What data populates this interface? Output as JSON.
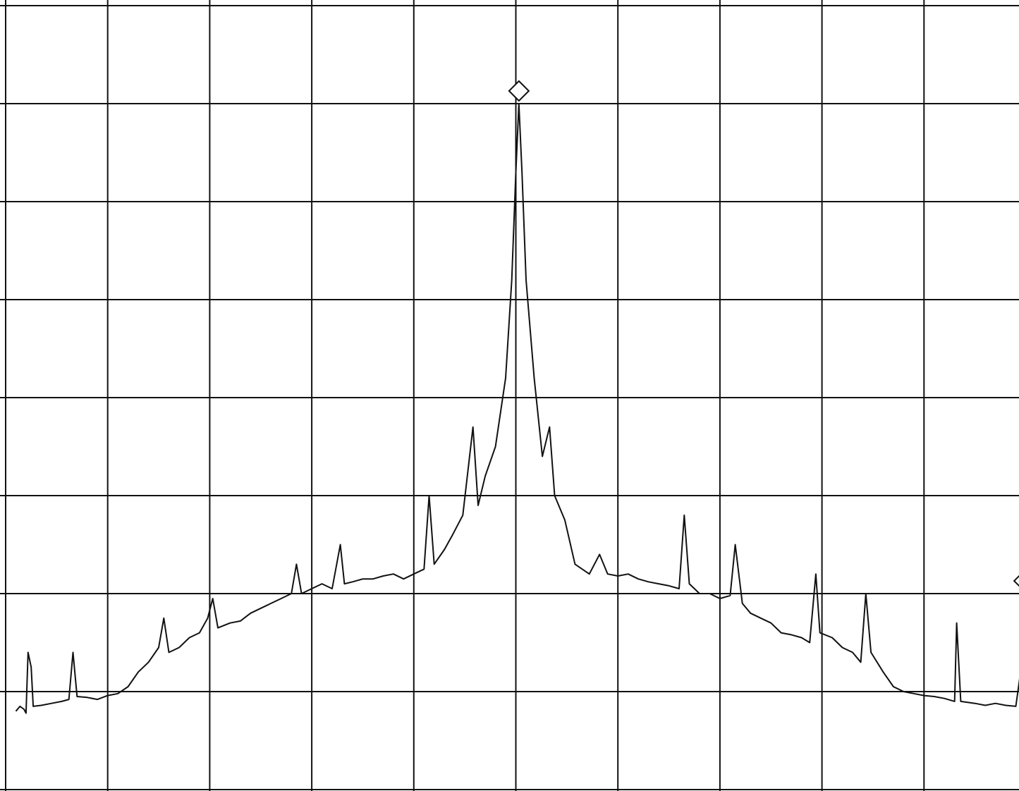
{
  "chart_data": {
    "type": "line",
    "title": "",
    "xlabel": "",
    "ylabel": "",
    "xlim": [
      0,
      10
    ],
    "ylim": [
      0,
      8
    ],
    "grid": true,
    "grid_divisions": {
      "x": 10,
      "y": 8
    },
    "markers": [
      {
        "name": "peak-marker",
        "x": 5.03,
        "y": 7.0
      },
      {
        "name": "edge-marker",
        "x": 9.98,
        "y": 2.0
      }
    ],
    "series": [
      {
        "values_xy": [
          [
            0.1,
            0.8
          ],
          [
            0.14,
            0.85
          ],
          [
            0.18,
            0.82
          ],
          [
            0.2,
            0.78
          ],
          [
            0.22,
            1.4
          ],
          [
            0.25,
            1.25
          ],
          [
            0.27,
            0.85
          ],
          [
            0.35,
            0.86
          ],
          [
            0.45,
            0.88
          ],
          [
            0.55,
            0.9
          ],
          [
            0.62,
            0.92
          ],
          [
            0.66,
            1.4
          ],
          [
            0.7,
            0.95
          ],
          [
            0.8,
            0.94
          ],
          [
            0.9,
            0.92
          ],
          [
            1.0,
            0.96
          ],
          [
            1.1,
            0.98
          ],
          [
            1.2,
            1.05
          ],
          [
            1.3,
            1.2
          ],
          [
            1.4,
            1.3
          ],
          [
            1.5,
            1.45
          ],
          [
            1.55,
            1.75
          ],
          [
            1.6,
            1.4
          ],
          [
            1.7,
            1.45
          ],
          [
            1.8,
            1.55
          ],
          [
            1.9,
            1.6
          ],
          [
            1.98,
            1.75
          ],
          [
            2.03,
            1.95
          ],
          [
            2.08,
            1.65
          ],
          [
            2.2,
            1.7
          ],
          [
            2.3,
            1.72
          ],
          [
            2.4,
            1.8
          ],
          [
            2.5,
            1.85
          ],
          [
            2.6,
            1.9
          ],
          [
            2.7,
            1.95
          ],
          [
            2.8,
            2.0
          ],
          [
            2.85,
            2.3
          ],
          [
            2.9,
            2.0
          ],
          [
            3.0,
            2.05
          ],
          [
            3.1,
            2.1
          ],
          [
            3.2,
            2.05
          ],
          [
            3.28,
            2.5
          ],
          [
            3.32,
            2.1
          ],
          [
            3.4,
            2.12
          ],
          [
            3.5,
            2.15
          ],
          [
            3.6,
            2.15
          ],
          [
            3.7,
            2.18
          ],
          [
            3.8,
            2.2
          ],
          [
            3.9,
            2.15
          ],
          [
            4.0,
            2.2
          ],
          [
            4.1,
            2.25
          ],
          [
            4.15,
            3.0
          ],
          [
            4.2,
            2.3
          ],
          [
            4.3,
            2.45
          ],
          [
            4.38,
            2.6
          ],
          [
            4.48,
            2.8
          ],
          [
            4.58,
            3.7
          ],
          [
            4.63,
            2.9
          ],
          [
            4.7,
            3.2
          ],
          [
            4.8,
            3.5
          ],
          [
            4.9,
            4.2
          ],
          [
            4.96,
            5.2
          ],
          [
            5.0,
            6.3
          ],
          [
            5.03,
            7.0
          ],
          [
            5.06,
            6.3
          ],
          [
            5.1,
            5.2
          ],
          [
            5.18,
            4.2
          ],
          [
            5.26,
            3.4
          ],
          [
            5.33,
            3.7
          ],
          [
            5.38,
            3.0
          ],
          [
            5.48,
            2.75
          ],
          [
            5.58,
            2.3
          ],
          [
            5.72,
            2.2
          ],
          [
            5.82,
            2.4
          ],
          [
            5.9,
            2.2
          ],
          [
            6.0,
            2.18
          ],
          [
            6.1,
            2.2
          ],
          [
            6.2,
            2.15
          ],
          [
            6.3,
            2.12
          ],
          [
            6.4,
            2.1
          ],
          [
            6.5,
            2.08
          ],
          [
            6.6,
            2.05
          ],
          [
            6.65,
            2.8
          ],
          [
            6.7,
            2.1
          ],
          [
            6.8,
            2.0
          ],
          [
            6.9,
            2.0
          ],
          [
            7.0,
            1.95
          ],
          [
            7.1,
            1.98
          ],
          [
            7.15,
            2.5
          ],
          [
            7.22,
            1.9
          ],
          [
            7.3,
            1.8
          ],
          [
            7.4,
            1.75
          ],
          [
            7.5,
            1.7
          ],
          [
            7.6,
            1.6
          ],
          [
            7.7,
            1.58
          ],
          [
            7.8,
            1.55
          ],
          [
            7.88,
            1.5
          ],
          [
            7.94,
            2.2
          ],
          [
            7.98,
            1.6
          ],
          [
            8.1,
            1.55
          ],
          [
            8.2,
            1.45
          ],
          [
            8.3,
            1.4
          ],
          [
            8.38,
            1.3
          ],
          [
            8.43,
            2.0
          ],
          [
            8.48,
            1.4
          ],
          [
            8.6,
            1.2
          ],
          [
            8.7,
            1.05
          ],
          [
            8.8,
            1.0
          ],
          [
            8.9,
            0.98
          ],
          [
            9.0,
            0.96
          ],
          [
            9.1,
            0.95
          ],
          [
            9.2,
            0.93
          ],
          [
            9.3,
            0.9
          ],
          [
            9.32,
            1.7
          ],
          [
            9.36,
            0.9
          ],
          [
            9.5,
            0.88
          ],
          [
            9.6,
            0.86
          ],
          [
            9.7,
            0.88
          ],
          [
            9.8,
            0.86
          ],
          [
            9.9,
            0.85
          ],
          [
            9.96,
            1.3
          ],
          [
            9.98,
            2.0
          ]
        ]
      }
    ]
  }
}
